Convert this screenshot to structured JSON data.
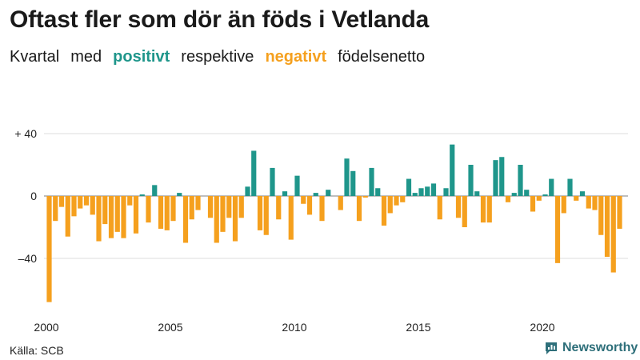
{
  "title": "Oftast fler som dör än föds i Vetlanda",
  "subtitle": {
    "w1": "Kvartal",
    "w2": "med",
    "positive": "positivt",
    "w3": "respektive",
    "negative": "negativt",
    "w4": "födelsenetto"
  },
  "source": "Källa: SCB",
  "brand": {
    "name": "Newsworthy",
    "icon": "bar-chart-icon"
  },
  "colors": {
    "positive": "#1f968b",
    "negative": "#f5a01e",
    "grid": "#dddddd",
    "zero": "#999999"
  },
  "chart_data": {
    "type": "bar",
    "ylim": [
      -70,
      45
    ],
    "yticks": [
      40,
      0,
      -40
    ],
    "ytick_labels": [
      "+ 40",
      "0",
      "–40"
    ],
    "xtick_years": [
      2000,
      2005,
      2010,
      2015,
      2020
    ],
    "xtick_labels": [
      "2000",
      "2005",
      "2010",
      "2015",
      "2020"
    ],
    "start_year": 2000,
    "series": [
      {
        "values": [
          -68,
          -16,
          -7,
          -26,
          -13,
          -8,
          -6,
          -12,
          -29,
          -18,
          -27,
          -23,
          -27,
          -6,
          -24,
          1,
          -17,
          7,
          -21,
          -22,
          -16,
          2,
          -30,
          -15,
          -9,
          0,
          -14,
          -30,
          -23,
          -14,
          -29,
          -14,
          6,
          29,
          -22,
          -25,
          18,
          -15,
          3,
          -28,
          13,
          -5,
          -12,
          2,
          -16,
          4,
          0,
          -9,
          24,
          16,
          -16,
          -1,
          18,
          5,
          -19,
          -11,
          -6,
          -4,
          11,
          2,
          5,
          6,
          8,
          -15,
          5,
          33,
          -14,
          -20,
          20,
          3,
          -17,
          -17,
          23,
          25,
          -4,
          2,
          20,
          4,
          -10,
          -3,
          1,
          11,
          -43,
          -11,
          11,
          -3,
          3,
          -8,
          -9,
          -25,
          -39,
          -49,
          -21
        ]
      }
    ]
  }
}
